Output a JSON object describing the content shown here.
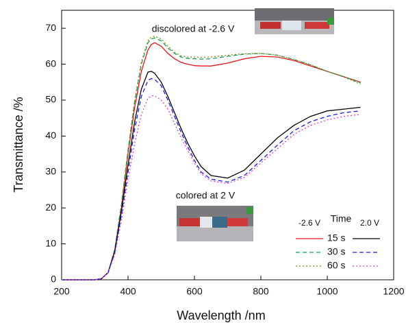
{
  "chart_data": {
    "type": "line",
    "x_label": "Wavelength /nm",
    "y_label": "Transmittance /%",
    "annotations": [
      "discolored at -2.6 V",
      "colored at 2 V"
    ],
    "legend": {
      "title": "Time",
      "left_header": "-2.6 V",
      "right_header": "2.0 V"
    },
    "xlim": [
      200,
      1200
    ],
    "xticks": [
      200,
      400,
      600,
      800,
      1000,
      1200
    ],
    "ylim": [
      0,
      75
    ],
    "yticks": [
      0,
      10,
      20,
      30,
      40,
      50,
      60,
      70
    ],
    "x": [
      200,
      250,
      300,
      320,
      340,
      360,
      380,
      400,
      420,
      440,
      460,
      470,
      480,
      500,
      520,
      540,
      560,
      580,
      600,
      620,
      650,
      700,
      750,
      800,
      850,
      900,
      950,
      1000,
      1050,
      1100
    ],
    "series": [
      {
        "name": "15 s",
        "color": "#e8141c",
        "dash": "none",
        "values": [
          0,
          0,
          0,
          0.3,
          2,
          8,
          20,
          35,
          48,
          58,
          64,
          65.5,
          66,
          65,
          63,
          61.5,
          60.5,
          60,
          59.6,
          59.5,
          59.5,
          60.3,
          61.5,
          62.2,
          62,
          61,
          59.5,
          58,
          56.5,
          55
        ]
      },
      {
        "name": "30 s",
        "color": "#1a9a5a",
        "dash": "6,4",
        "values": [
          0,
          0,
          0,
          0.3,
          2,
          8.5,
          21,
          36,
          49.5,
          60,
          66,
          67,
          67.3,
          66.5,
          64.5,
          63,
          62,
          61.6,
          61.5,
          61.4,
          61.5,
          62.2,
          62.8,
          63,
          62.5,
          61.3,
          59.8,
          58,
          56.5,
          54.8
        ]
      },
      {
        "name": "60 s",
        "color": "#7a8a10",
        "dash": "2,3",
        "values": [
          0,
          0,
          0,
          0.3,
          2,
          8.5,
          21,
          36,
          50,
          60.5,
          66.5,
          67.5,
          67.8,
          67,
          65,
          63.3,
          62.3,
          62,
          62,
          61.9,
          62,
          62.5,
          62.9,
          63,
          62.5,
          61.3,
          59.8,
          58,
          56.4,
          54.5
        ]
      },
      {
        "color": "#000000",
        "dash": "none",
        "values": [
          0,
          0,
          0,
          0.3,
          2,
          8,
          19,
          32,
          44,
          53,
          57.8,
          58,
          57.5,
          55,
          51,
          46.5,
          42,
          38,
          34.5,
          31.5,
          29,
          28.3,
          30.5,
          35,
          39.5,
          43,
          45.5,
          47,
          47.5,
          48
        ]
      },
      {
        "color": "#1a1ae6",
        "dash": "6,4",
        "values": [
          0,
          0,
          0,
          0.3,
          2,
          7.5,
          18,
          30,
          42,
          51,
          55.5,
          56,
          55.8,
          54,
          50,
          45.5,
          41,
          37,
          33.2,
          30,
          28,
          27.2,
          29,
          33.2,
          37.5,
          41.5,
          44,
          45.5,
          46.5,
          47
        ]
      },
      {
        "color": "#e632e6",
        "dash": "2,3",
        "values": [
          0,
          0,
          0,
          0.3,
          2,
          7,
          16.5,
          28,
          38,
          46,
          50.5,
          51.2,
          51.2,
          50,
          47.5,
          43.5,
          39.5,
          36,
          32.5,
          29.5,
          27.5,
          26.8,
          28.5,
          32.5,
          36.5,
          40.5,
          43,
          44.5,
          45.5,
          46
        ]
      }
    ]
  }
}
